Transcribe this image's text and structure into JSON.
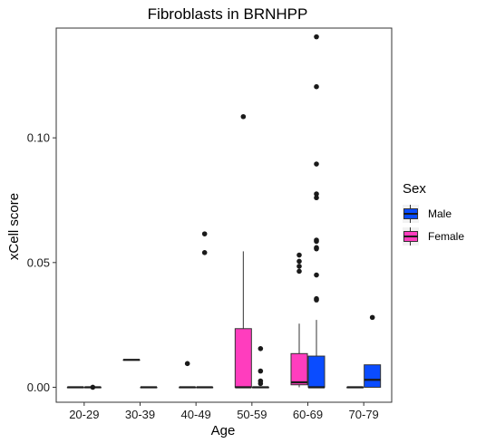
{
  "chart_data": {
    "type": "boxplot",
    "title": "Fibroblasts in BRNHPP",
    "xlabel": "Age",
    "ylabel": "xCell score",
    "categories": [
      "20-29",
      "30-39",
      "40-49",
      "50-59",
      "60-69",
      "70-79"
    ],
    "ylim": [
      -0.006,
      0.144
    ],
    "yticks": [
      0.0,
      0.05,
      0.1
    ],
    "ytick_labels": [
      "0.00",
      "0.05",
      "0.10"
    ],
    "grid": false,
    "legend": {
      "title": "Sex",
      "position": "right",
      "entries": [
        {
          "label": "Male",
          "color": "#0a4cff"
        },
        {
          "label": "Female",
          "color": "#ff3dbe"
        }
      ]
    },
    "series": [
      {
        "name": "Female",
        "color": "#ff3dbe",
        "boxes": [
          {
            "category": "20-29",
            "min": 0.0,
            "q1": 0.0,
            "median": 0.0,
            "q3": 0.0,
            "max": 0.0,
            "outliers": []
          },
          {
            "category": "30-39",
            "min": 0.011,
            "q1": 0.011,
            "median": 0.011,
            "q3": 0.011,
            "max": 0.011,
            "outliers": []
          },
          {
            "category": "40-49",
            "min": 0.0,
            "q1": 0.0,
            "median": 0.0,
            "q3": 0.0,
            "max": 0.0,
            "outliers": [
              0.0095
            ]
          },
          {
            "category": "50-59",
            "min": 0.0,
            "q1": 0.0,
            "median": 0.0,
            "q3": 0.0235,
            "max": 0.0545,
            "outliers": [
              0.1085
            ]
          },
          {
            "category": "60-69",
            "min": 0.0,
            "q1": 0.001,
            "median": 0.002,
            "q3": 0.0135,
            "max": 0.0255,
            "outliers": [
              0.0465,
              0.0485,
              0.0505,
              0.053
            ]
          },
          {
            "category": "70-79",
            "min": 0.0,
            "q1": 0.0,
            "median": 0.0,
            "q3": 0.0,
            "max": 0.0,
            "outliers": []
          }
        ]
      },
      {
        "name": "Male",
        "color": "#0a4cff",
        "boxes": [
          {
            "category": "20-29",
            "min": 0.0,
            "q1": 0.0,
            "median": 0.0,
            "q3": 0.0,
            "max": 0.0,
            "outliers": [
              0.0
            ]
          },
          {
            "category": "30-39",
            "min": 0.0,
            "q1": 0.0,
            "median": 0.0,
            "q3": 0.0,
            "max": 0.0,
            "outliers": []
          },
          {
            "category": "40-49",
            "min": 0.0,
            "q1": 0.0,
            "median": 0.0,
            "q3": 0.0,
            "max": 0.0,
            "outliers": [
              0.054,
              0.0615
            ]
          },
          {
            "category": "50-59",
            "min": 0.0,
            "q1": 0.0,
            "median": 0.0,
            "q3": 0.0,
            "max": 0.0,
            "outliers": [
              0.0015,
              0.0025,
              0.0065,
              0.0155
            ]
          },
          {
            "category": "60-69",
            "min": 0.0,
            "q1": 0.0,
            "median": 0.0,
            "q3": 0.0125,
            "max": 0.027,
            "outliers": [
              0.035,
              0.0355,
              0.045,
              0.0555,
              0.056,
              0.0585,
              0.059,
              0.076,
              0.0775,
              0.0895,
              0.1205,
              0.1405
            ]
          },
          {
            "category": "70-79",
            "min": 0.0,
            "q1": 0.0,
            "median": 0.003,
            "q3": 0.009,
            "max": 0.009,
            "outliers": [
              0.028
            ]
          }
        ]
      }
    ]
  }
}
